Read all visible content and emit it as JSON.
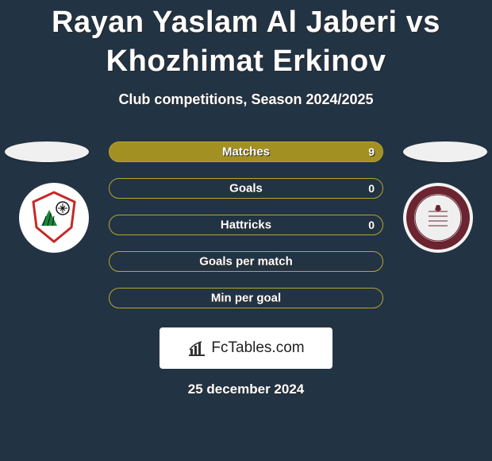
{
  "background_color": "#223344",
  "title": "Rayan Yaslam Al Jaberi vs Khozhimat Erkinov",
  "title_fontsize": 38,
  "title_color": "#ffffff",
  "subtitle": "Club competitions, Season 2024/2025",
  "subtitle_fontsize": 18,
  "subtitle_color": "#ffffff",
  "flags": {
    "left_color": "#f0f0f0",
    "right_color": "#f0f0f0"
  },
  "logos": {
    "left": {
      "name": "club-logo-left",
      "bg": "#ffffff",
      "stroke": "#c62828",
      "accent1": "#168a3b",
      "accent2": "#111111"
    },
    "right": {
      "name": "club-logo-right",
      "bg": "#f4f4f2",
      "ring": "#6b2430",
      "inner": "#efefef"
    }
  },
  "bars_width": 346,
  "bars": [
    {
      "label": "Matches",
      "left_value": "",
      "right_value": "9",
      "fill_side": "right",
      "fill_pct": 100,
      "bar_fill_color": "#a39023",
      "bar_border_color": "#b8a430",
      "bar_bg_color": "#a39023",
      "text_color": "#ffffff"
    },
    {
      "label": "Goals",
      "left_value": "",
      "right_value": "0",
      "fill_side": "right",
      "fill_pct": 0,
      "bar_fill_color": "#a39023",
      "bar_border_color": "#b8a430",
      "bar_bg_color": "transparent",
      "text_color": "#ffffff"
    },
    {
      "label": "Hattricks",
      "left_value": "",
      "right_value": "0",
      "fill_side": "right",
      "fill_pct": 0,
      "bar_fill_color": "#a39023",
      "bar_border_color": "#b8a430",
      "bar_bg_color": "transparent",
      "text_color": "#ffffff"
    },
    {
      "label": "Goals per match",
      "left_value": "",
      "right_value": "",
      "fill_side": "right",
      "fill_pct": 0,
      "bar_fill_color": "#a39023",
      "bar_border_color": "#b8a430",
      "bar_bg_color": "transparent",
      "text_color": "#ffffff"
    },
    {
      "label": "Min per goal",
      "left_value": "",
      "right_value": "",
      "fill_side": "right",
      "fill_pct": 0,
      "bar_fill_color": "#a39023",
      "bar_border_color": "#b8a430",
      "bar_bg_color": "transparent",
      "text_color": "#ffffff"
    }
  ],
  "footer_brand": "FcTables.com",
  "footer_bg": "#ffffff",
  "footer_text_color": "#222222",
  "footer_icon_color": "#333333",
  "date": "25 december 2024",
  "date_color": "#ffffff"
}
